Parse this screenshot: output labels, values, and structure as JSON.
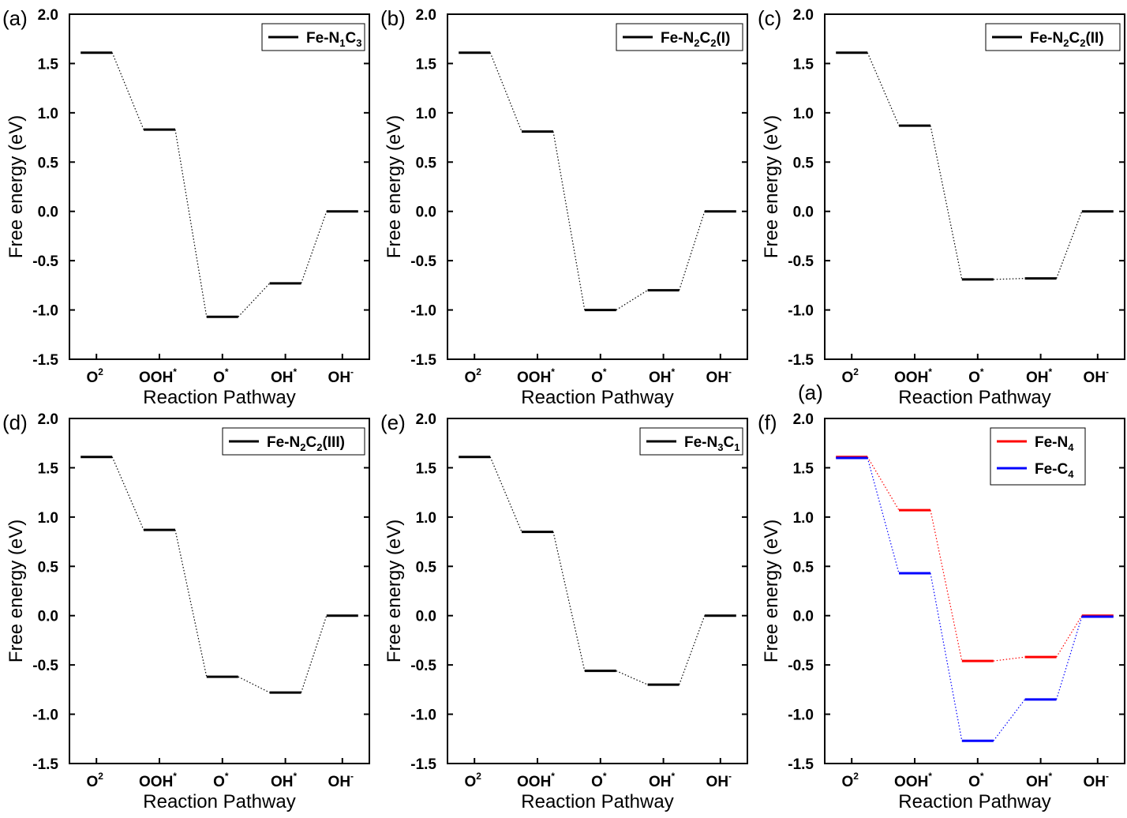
{
  "chart_data": [
    {
      "type": "line",
      "panel_label": "(a)",
      "xlabel": "Reaction Pathway",
      "ylabel": "Free energy (eV)",
      "ylim": [
        -1.5,
        2.0
      ],
      "yticks": [
        "-1.5",
        "-1.0",
        "-0.5",
        "0.0",
        "0.5",
        "1.0",
        "1.5",
        "2.0"
      ],
      "categories": [
        {
          "base": "O",
          "sup": "2"
        },
        {
          "base": "OOH",
          "sup": "*"
        },
        {
          "base": "O",
          "sup": "*"
        },
        {
          "base": "OH",
          "sup": "*"
        },
        {
          "base": "OH",
          "sup": "-"
        }
      ],
      "legend_position": "top-right",
      "series": [
        {
          "name": {
            "parts": [
              "Fe-N",
              "1",
              "C",
              "3"
            ]
          },
          "color": "#000000",
          "values": [
            1.61,
            0.83,
            -1.07,
            -0.73,
            0.0
          ]
        }
      ]
    },
    {
      "type": "line",
      "panel_label": "(b)",
      "xlabel": "Reaction Pathway",
      "ylabel": "Free energy (eV)",
      "ylim": [
        -1.5,
        2.0
      ],
      "yticks": [
        "-1.5",
        "-1.0",
        "-0.5",
        "0.0",
        "0.5",
        "1.0",
        "1.5",
        "2.0"
      ],
      "categories": [
        {
          "base": "O",
          "sup": "2"
        },
        {
          "base": "OOH",
          "sup": "*"
        },
        {
          "base": "O",
          "sup": "*"
        },
        {
          "base": "OH",
          "sup": "*"
        },
        {
          "base": "OH",
          "sup": "-"
        }
      ],
      "legend_position": "top-right",
      "series": [
        {
          "name": {
            "parts": [
              "Fe-N",
              "2",
              "C",
              "2",
              "(I)"
            ]
          },
          "color": "#000000",
          "values": [
            1.61,
            0.81,
            -1.0,
            -0.8,
            0.0
          ]
        }
      ]
    },
    {
      "type": "line",
      "panel_label": "(c)",
      "xlabel": "Reaction Pathway",
      "ylabel": "Free energy (eV)",
      "ylim": [
        -1.5,
        2.0
      ],
      "yticks": [
        "-1.5",
        "-1.0",
        "-0.5",
        "0.0",
        "0.5",
        "1.0",
        "1.5",
        "2.0"
      ],
      "categories": [
        {
          "base": "O",
          "sup": "2"
        },
        {
          "base": "OOH",
          "sup": "*"
        },
        {
          "base": "O",
          "sup": "*"
        },
        {
          "base": "OH",
          "sup": "*"
        },
        {
          "base": "OH",
          "sup": "-"
        }
      ],
      "legend_position": "top-right",
      "series": [
        {
          "name": {
            "parts": [
              "Fe-N",
              "2",
              "C",
              "2",
              "(II)"
            ]
          },
          "color": "#000000",
          "values": [
            1.61,
            0.87,
            -0.69,
            -0.68,
            0.0
          ]
        }
      ]
    },
    {
      "type": "line",
      "panel_label": "(d)",
      "xlabel": "Reaction Pathway",
      "ylabel": "Free energy (eV)",
      "ylim": [
        -1.5,
        2.0
      ],
      "yticks": [
        "-1.5",
        "-1.0",
        "-0.5",
        "0.0",
        "0.5",
        "1.0",
        "1.5",
        "2.0"
      ],
      "categories": [
        {
          "base": "O",
          "sup": "2"
        },
        {
          "base": "OOH",
          "sup": "*"
        },
        {
          "base": "O",
          "sup": "*"
        },
        {
          "base": "OH",
          "sup": "*"
        },
        {
          "base": "OH",
          "sup": "-"
        }
      ],
      "legend_position": "top-right",
      "series": [
        {
          "name": {
            "parts": [
              "Fe-N",
              "2",
              "C",
              "2",
              "(III)"
            ]
          },
          "color": "#000000",
          "values": [
            1.61,
            0.87,
            -0.62,
            -0.78,
            0.0
          ]
        }
      ]
    },
    {
      "type": "line",
      "panel_label": "(e)",
      "xlabel": "Reaction Pathway",
      "ylabel": "Free energy (eV)",
      "ylim": [
        -1.5,
        2.0
      ],
      "yticks": [
        "-1.5",
        "-1.0",
        "-0.5",
        "0.0",
        "0.5",
        "1.0",
        "1.5",
        "2.0"
      ],
      "categories": [
        {
          "base": "O",
          "sup": "2"
        },
        {
          "base": "OOH",
          "sup": "*"
        },
        {
          "base": "O",
          "sup": "*"
        },
        {
          "base": "OH",
          "sup": "*"
        },
        {
          "base": "OH",
          "sup": "-"
        }
      ],
      "legend_position": "top-right",
      "series": [
        {
          "name": {
            "parts": [
              "Fe-N",
              "3",
              "C",
              "1"
            ]
          },
          "color": "#000000",
          "values": [
            1.61,
            0.85,
            -0.56,
            -0.7,
            0.0
          ]
        }
      ]
    },
    {
      "type": "line",
      "panel_label": "(f)",
      "extra_label": "(a)",
      "xlabel": "Reaction Pathway",
      "ylabel": "Free energy (eV)",
      "ylim": [
        -1.5,
        2.0
      ],
      "yticks": [
        "-1.5",
        "-1.0",
        "-0.5",
        "0.0",
        "0.5",
        "1.0",
        "1.5",
        "2.0"
      ],
      "categories": [
        {
          "base": "O",
          "sup": "2"
        },
        {
          "base": "OOH",
          "sup": "*"
        },
        {
          "base": "O",
          "sup": "*"
        },
        {
          "base": "OH",
          "sup": "*"
        },
        {
          "base": "OH",
          "sup": "-"
        }
      ],
      "legend_position": "top-right",
      "series": [
        {
          "name": {
            "parts": [
              "Fe-N",
              "4"
            ]
          },
          "color": "#ff0000",
          "values": [
            1.61,
            1.07,
            -0.46,
            -0.42,
            0.0
          ]
        },
        {
          "name": {
            "parts": [
              "Fe-C",
              "4"
            ]
          },
          "color": "#0000ff",
          "values": [
            1.6,
            0.43,
            -1.27,
            -0.85,
            -0.01
          ]
        }
      ]
    }
  ]
}
